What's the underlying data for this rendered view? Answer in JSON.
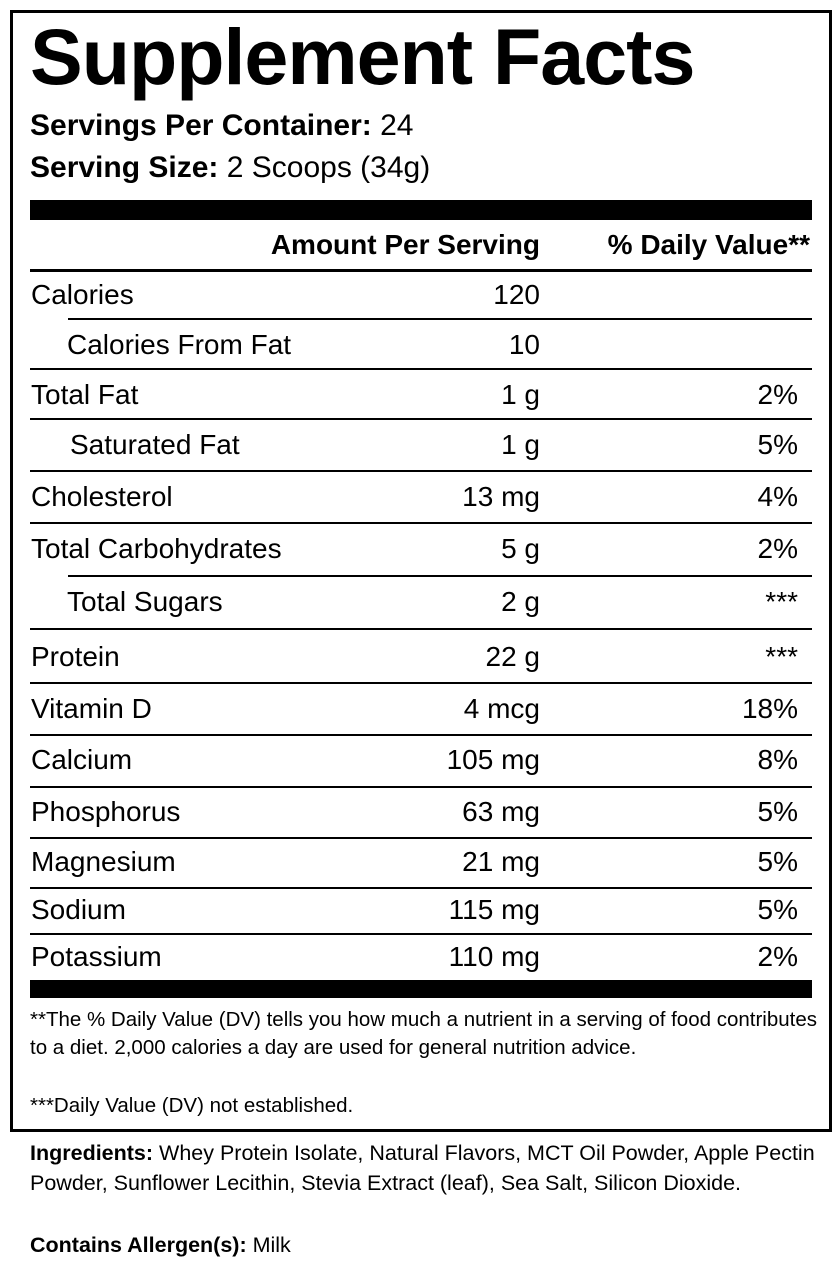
{
  "header": {
    "title": "Supplement Facts",
    "servings_label": "Servings Per Container:",
    "servings_value": "24",
    "size_label": "Serving Size:",
    "size_value": "2 Scoops (34g)"
  },
  "table": {
    "columns": [
      "Amount Per Serving",
      "% Daily Value**"
    ],
    "rows": [
      [
        "Calories",
        "120",
        ""
      ],
      [
        "Calories From Fat",
        "10",
        ""
      ],
      [
        "Total Fat",
        "1 g",
        "2%"
      ],
      [
        "Saturated Fat",
        "1 g",
        "5%"
      ],
      [
        "Cholesterol",
        "13 mg",
        "4%"
      ],
      [
        "Total Carbohydrates",
        "5 g",
        "2%"
      ],
      [
        "Total Sugars",
        "2 g",
        "***"
      ],
      [
        "Protein",
        "22 g",
        "***"
      ],
      [
        "Vitamin D",
        "4 mcg",
        "18%"
      ],
      [
        "Calcium",
        "105 mg",
        "8%"
      ],
      [
        "Phosphorus",
        "63 mg",
        "5%"
      ],
      [
        "Magnesium",
        "21 mg",
        "5%"
      ],
      [
        "Sodium",
        "115 mg",
        "5%"
      ],
      [
        "Potassium",
        "110 mg",
        "2%"
      ]
    ]
  },
  "footnotes": [
    "**The % Daily Value (DV) tells you how much a nutrient in a serving of food contributes to a diet. 2,000 calories a day are used for general nutrition advice.",
    "***Daily Value (DV) not established."
  ],
  "ingredients": {
    "label": "Ingredients:",
    "text": "Whey Protein Isolate, Natural Flavors, MCT Oil Powder, Apple Pectin Powder, Sunflower Lecithin, Stevia Extract (leaf), Sea Salt, Silicon Dioxide."
  },
  "allergens": {
    "label": "Contains Allergen(s):",
    "text": "Milk"
  }
}
